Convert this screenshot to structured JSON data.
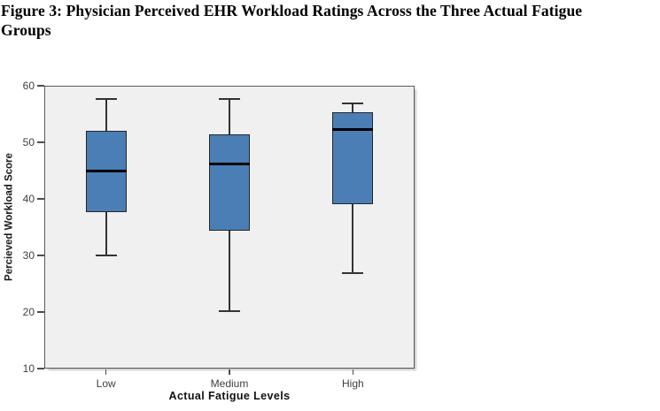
{
  "figure": {
    "title_line1": "Figure 3: Physician Perceived EHR Workload Ratings Across the Three Actual Fatigue",
    "title_line2": "Groups"
  },
  "colors": {
    "box_fill": "#4a7eb5",
    "box_border": "#262626",
    "median": "#000000",
    "whisker": "#333333",
    "axis": "#4d4d4d",
    "plot_bg": "#f0f0f0",
    "plot_border": "#5a5a5a",
    "tick_label": "#3f3f3f"
  },
  "chart_data": {
    "type": "boxplot",
    "title": "Figure 3: Physician Perceived EHR Workload Ratings Across the Three Actual Fatigue Groups",
    "xlabel": "Actual Fatigue Levels",
    "ylabel": "Percieved Workload Score",
    "ylim": [
      10,
      60
    ],
    "y_ticks": [
      10,
      20,
      30,
      40,
      50,
      60
    ],
    "categories": [
      "Low",
      "Medium",
      "High"
    ],
    "series": [
      {
        "category": "Low",
        "whisker_low": 30.0,
        "q1": 37.7,
        "median": 44.9,
        "q3": 52.0,
        "whisker_high": 57.7
      },
      {
        "category": "Medium",
        "whisker_low": 20.1,
        "q1": 34.3,
        "median": 46.2,
        "q3": 51.4,
        "whisker_high": 57.7
      },
      {
        "category": "High",
        "whisker_low": 26.9,
        "q1": 39.1,
        "median": 52.3,
        "q3": 55.3,
        "whisker_high": 56.8
      }
    ],
    "legend": false,
    "grid": false,
    "plot_background": "#f0f0f0"
  }
}
